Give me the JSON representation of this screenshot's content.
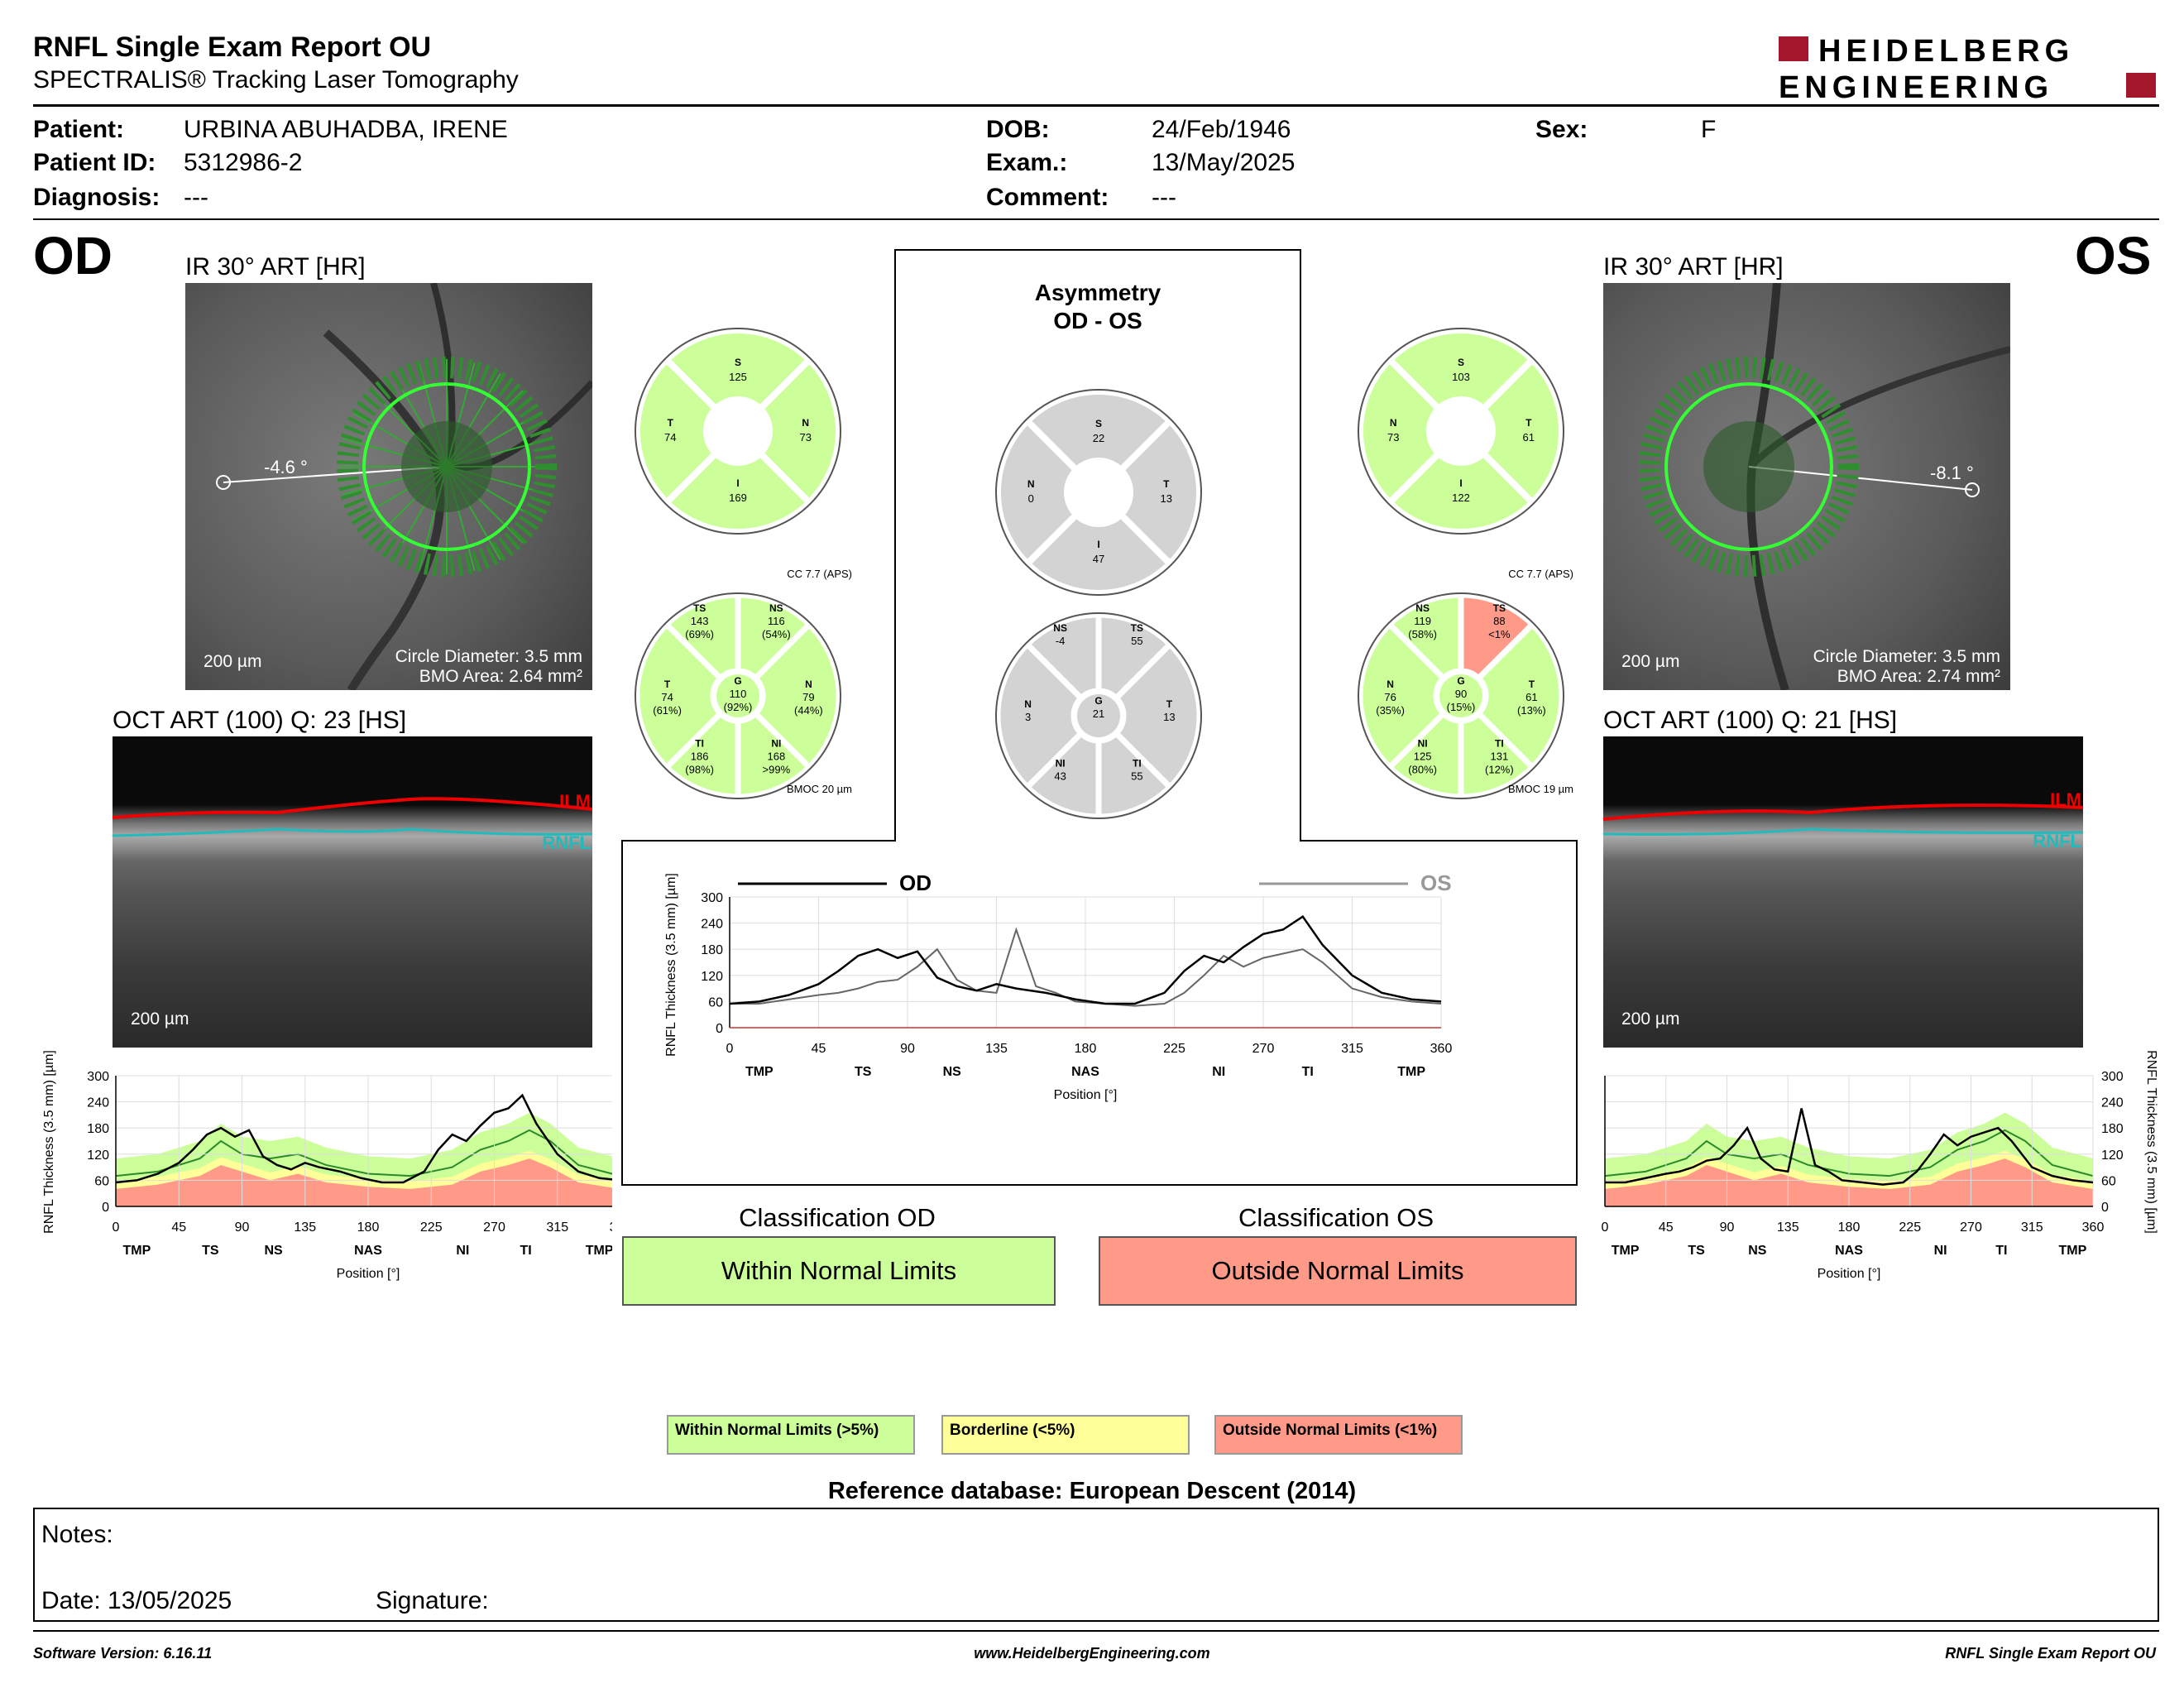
{
  "header": {
    "title": "RNFL Single Exam Report OU",
    "subtitle": "SPECTRALIS® Tracking Laser Tomography",
    "logo_line1": "HEIDELBERG",
    "logo_line2": "ENGINEERING"
  },
  "patient": {
    "patient_label": "Patient:",
    "patient_value": "URBINA ABUHADBA, IRENE",
    "id_label": "Patient ID:",
    "id_value": "5312986-2",
    "diagnosis_label": "Diagnosis:",
    "diagnosis_value": "---",
    "dob_label": "DOB:",
    "dob_value": "24/Feb/1946",
    "exam_label": "Exam.:",
    "exam_value": "13/May/2025",
    "comment_label": "Comment:",
    "comment_value": "---",
    "sex_label": "Sex:",
    "sex_value": "F"
  },
  "od": {
    "eye": "OD",
    "ir_caption": "IR 30° ART [HR]",
    "angle": "-4.6 °",
    "scale": "200 µm",
    "circle_diameter": "Circle Diameter: 3.5 mm",
    "bmo_area": "BMO Area: 2.64 mm²",
    "oct_caption": "OCT ART (100) Q: 23 [HS]",
    "oct_scale": "200 µm",
    "ilm": "ILM",
    "rnfl": "RNFL",
    "cc": "CC 7.7 (APS)",
    "bmoc": "BMOC 20 µm",
    "quad": {
      "S": "125",
      "T": "74",
      "N": "73",
      "I": "169"
    },
    "sectors": {
      "TS": [
        "TS",
        "143",
        "(69%)"
      ],
      "NS": [
        "NS",
        "116",
        "(54%)"
      ],
      "T": [
        "T",
        "74",
        "(61%)"
      ],
      "G": [
        "G",
        "110",
        "(92%)"
      ],
      "N": [
        "N",
        "79",
        "(44%)"
      ],
      "TI": [
        "TI",
        "186",
        "(98%)"
      ],
      "NI": [
        "NI",
        "168",
        ">99%"
      ]
    }
  },
  "os": {
    "eye": "OS",
    "ir_caption": "IR 30° ART [HR]",
    "angle": "-8.1 °",
    "scale": "200 µm",
    "circle_diameter": "Circle Diameter: 3.5 mm",
    "bmo_area": "BMO Area: 2.74 mm²",
    "oct_caption": "OCT ART (100) Q: 21 [HS]",
    "oct_scale": "200 µm",
    "ilm": "ILM",
    "rnfl": "RNFL",
    "cc": "CC 7.7 (APS)",
    "bmoc": "BMOC 19 µm",
    "quad": {
      "S": "103",
      "N": "73",
      "T": "61",
      "I": "122"
    },
    "sectors": {
      "NS": [
        "NS",
        "119",
        "(58%)"
      ],
      "TS": [
        "TS",
        "88",
        "<1%"
      ],
      "N": [
        "N",
        "76",
        "(35%)"
      ],
      "G": [
        "G",
        "90",
        "(15%)"
      ],
      "T": [
        "T",
        "61",
        "(13%)"
      ],
      "NI": [
        "NI",
        "125",
        "(80%)"
      ],
      "TI": [
        "TI",
        "131",
        "(12%)"
      ]
    }
  },
  "asymmetry": {
    "title1": "Asymmetry",
    "title2": "OD - OS",
    "quad": {
      "S": "22",
      "N": "0",
      "T": "13",
      "I": "47"
    },
    "sectors": {
      "NS": [
        "NS",
        "-4"
      ],
      "TS": [
        "TS",
        "55"
      ],
      "N": [
        "N",
        "3"
      ],
      "G": [
        "G",
        "21"
      ],
      "T": [
        "T",
        "13"
      ],
      "NI": [
        "NI",
        "43"
      ],
      "TI": [
        "TI",
        "55"
      ]
    }
  },
  "graphs": {
    "ylabel": "RNFL Thickness (3.5 mm) [µm]",
    "xlabel": "Position [°]",
    "od_legend": "OD",
    "os_legend": "OS",
    "yticks": [
      "300",
      "240",
      "180",
      "120",
      "60",
      "0"
    ],
    "xticks": [
      "0",
      "45",
      "90",
      "135",
      "180",
      "225",
      "270",
      "315",
      "360"
    ],
    "regions": [
      "TMP",
      "TS",
      "NS",
      "NAS",
      "NI",
      "TI",
      "TMP"
    ]
  },
  "chart_data": [
    {
      "type": "line",
      "title": "",
      "xlabel": "Position [°]",
      "ylabel": "RNFL Thickness (3.5 mm) [µm]",
      "xlim": [
        0,
        360
      ],
      "ylim": [
        0,
        300
      ],
      "series": [
        {
          "name": "OD",
          "x": [
            0,
            15,
            30,
            45,
            55,
            65,
            75,
            85,
            95,
            105,
            115,
            125,
            135,
            145,
            160,
            175,
            190,
            205,
            220,
            230,
            240,
            250,
            260,
            270,
            280,
            290,
            300,
            315,
            330,
            345,
            360
          ],
          "y": [
            55,
            60,
            75,
            100,
            130,
            165,
            180,
            160,
            175,
            115,
            95,
            85,
            100,
            90,
            80,
            65,
            55,
            55,
            80,
            130,
            165,
            150,
            185,
            215,
            225,
            255,
            190,
            120,
            80,
            65,
            60
          ]
        },
        {
          "name": "OS",
          "x": [
            0,
            15,
            30,
            45,
            55,
            65,
            75,
            85,
            95,
            105,
            115,
            125,
            135,
            145,
            155,
            165,
            175,
            190,
            205,
            220,
            230,
            240,
            250,
            260,
            270,
            280,
            290,
            300,
            315,
            330,
            345,
            360
          ],
          "y": [
            55,
            55,
            65,
            75,
            80,
            90,
            105,
            110,
            140,
            180,
            110,
            85,
            80,
            225,
            95,
            80,
            60,
            55,
            50,
            55,
            80,
            120,
            165,
            140,
            160,
            170,
            180,
            150,
            90,
            70,
            60,
            55
          ]
        }
      ]
    }
  ],
  "classification": {
    "od_label": "Classification OD",
    "od_value": "Within Normal Limits",
    "os_label": "Classification OS",
    "os_value": "Outside Normal Limits"
  },
  "legend": {
    "wnl": "Within Normal Limits (>5%)",
    "borderline": "Borderline (<5%)",
    "onl": "Outside Normal Limits (<1%)",
    "reference": "Reference database: European Descent (2014)"
  },
  "notes": {
    "notes_label": "Notes:",
    "date_label": "Date: 13/05/2025",
    "signature_label": "Signature:"
  },
  "footer": {
    "software": "Software Version: 6.16.11",
    "website": "www.HeidelbergEngineering.com",
    "report": "RNFL Single Exam Report OU"
  },
  "colors": {
    "green": "#ccff99",
    "yellow": "#ffff99",
    "red": "#ff9988",
    "gray": "#d3d3d3",
    "brand": "#a3162b"
  }
}
